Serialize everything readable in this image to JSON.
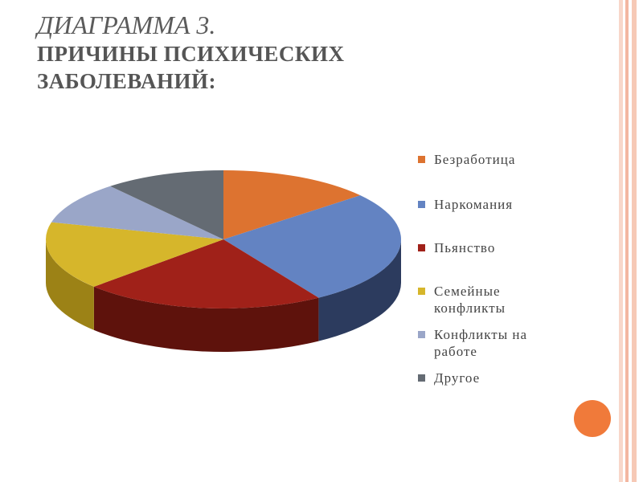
{
  "title": {
    "line1": "ДИАГРАММА 3.",
    "line2": "ПРИЧИНЫ ПСИХИЧЕСКИХ",
    "line3": "ЗАБОЛЕВАНИЙ:"
  },
  "colors": {
    "accent_dot": "#f07a3a",
    "border_stripes": [
      "#f6c9b6",
      "#f3b7a1",
      "#f8d7ca"
    ]
  },
  "chart_data": {
    "type": "pie",
    "style": "3d",
    "legend_position": "right",
    "slices": [
      {
        "label": "Безработица",
        "value": 14,
        "color": "#dd7330",
        "side_color": "#9c4a17"
      },
      {
        "label": "Наркомания",
        "value": 27,
        "color": "#6383c2",
        "side_color": "#2c3b5e"
      },
      {
        "label": "Пьянство",
        "value": 22,
        "color": "#a02119",
        "side_color": "#5e120c"
      },
      {
        "label": "Семейные конфликты",
        "value": 16,
        "color": "#d6b62b",
        "side_color": "#9c8216"
      },
      {
        "label": "Конфликты на работе",
        "value": 10,
        "color": "#9aa6c8",
        "side_color": "#6f7894"
      },
      {
        "label": "Другое",
        "value": 11,
        "color": "#646b73",
        "side_color": "#3a3f44"
      }
    ]
  }
}
